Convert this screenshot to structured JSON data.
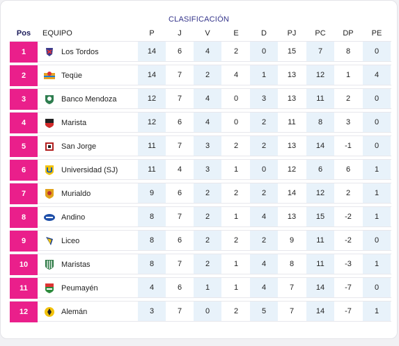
{
  "title": "CLASIFICACIÓN",
  "headers": {
    "pos": "Pos",
    "team": "EQUIPO",
    "p": "P",
    "j": "J",
    "v": "V",
    "e": "E",
    "d": "D",
    "pj": "PJ",
    "pc": "PC",
    "dp": "DP",
    "pe": "PE"
  },
  "rows": [
    {
      "pos": "1",
      "team": "Los Tordos",
      "logo": "los-tordos-logo",
      "p": "14",
      "j": "6",
      "v": "4",
      "e": "2",
      "d": "0",
      "pj": "15",
      "pc": "7",
      "dp": "8",
      "pe": "0"
    },
    {
      "pos": "2",
      "team": "Teqüe",
      "logo": "teque-logo",
      "p": "14",
      "j": "7",
      "v": "2",
      "e": "4",
      "d": "1",
      "pj": "13",
      "pc": "12",
      "dp": "1",
      "pe": "4"
    },
    {
      "pos": "3",
      "team": "Banco Mendoza",
      "logo": "banco-mendoza-logo",
      "p": "12",
      "j": "7",
      "v": "4",
      "e": "0",
      "d": "3",
      "pj": "13",
      "pc": "11",
      "dp": "2",
      "pe": "0"
    },
    {
      "pos": "4",
      "team": "Marista",
      "logo": "marista-logo",
      "p": "12",
      "j": "6",
      "v": "4",
      "e": "0",
      "d": "2",
      "pj": "11",
      "pc": "8",
      "dp": "3",
      "pe": "0"
    },
    {
      "pos": "5",
      "team": "San Jorge",
      "logo": "san-jorge-logo",
      "p": "11",
      "j": "7",
      "v": "3",
      "e": "2",
      "d": "2",
      "pj": "13",
      "pc": "14",
      "dp": "-1",
      "pe": "0"
    },
    {
      "pos": "6",
      "team": "Universidad (SJ)",
      "logo": "universidad-sj-logo",
      "p": "11",
      "j": "4",
      "v": "3",
      "e": "1",
      "d": "0",
      "pj": "12",
      "pc": "6",
      "dp": "6",
      "pe": "1"
    },
    {
      "pos": "7",
      "team": "Murialdo",
      "logo": "murialdo-logo",
      "p": "9",
      "j": "6",
      "v": "2",
      "e": "2",
      "d": "2",
      "pj": "14",
      "pc": "12",
      "dp": "2",
      "pe": "1"
    },
    {
      "pos": "8",
      "team": "Andino",
      "logo": "andino-logo",
      "p": "8",
      "j": "7",
      "v": "2",
      "e": "1",
      "d": "4",
      "pj": "13",
      "pc": "15",
      "dp": "-2",
      "pe": "1"
    },
    {
      "pos": "9",
      "team": "Liceo",
      "logo": "liceo-logo",
      "p": "8",
      "j": "6",
      "v": "2",
      "e": "2",
      "d": "2",
      "pj": "9",
      "pc": "11",
      "dp": "-2",
      "pe": "0"
    },
    {
      "pos": "10",
      "team": "Maristas",
      "logo": "maristas-logo",
      "p": "8",
      "j": "7",
      "v": "2",
      "e": "1",
      "d": "4",
      "pj": "8",
      "pc": "11",
      "dp": "-3",
      "pe": "1"
    },
    {
      "pos": "11",
      "team": "Peumayén",
      "logo": "peumayen-logo",
      "p": "4",
      "j": "6",
      "v": "1",
      "e": "1",
      "d": "4",
      "pj": "7",
      "pc": "14",
      "dp": "-7",
      "pe": "0"
    },
    {
      "pos": "12",
      "team": "Alemán",
      "logo": "aleman-logo",
      "p": "3",
      "j": "7",
      "v": "0",
      "e": "2",
      "d": "5",
      "pj": "7",
      "pc": "14",
      "dp": "-7",
      "pe": "1"
    }
  ],
  "colors": {
    "accent": "#ea1f8b",
    "shade": "#e8f2fa",
    "title": "#33338a"
  }
}
